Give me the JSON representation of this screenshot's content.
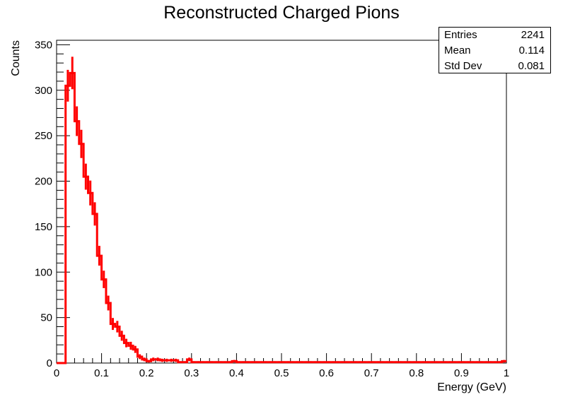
{
  "chart_data": {
    "type": "histogram",
    "title": "Reconstructed Charged Pions",
    "xlabel": "Energy (GeV)",
    "ylabel": "Counts",
    "xlim": [
      0,
      1
    ],
    "ylim": [
      0,
      355
    ],
    "x_ticks": [
      "0",
      "0.1",
      "0.2",
      "0.3",
      "0.4",
      "0.5",
      "0.6",
      "0.7",
      "0.8",
      "0.9",
      "1"
    ],
    "y_ticks": [
      "0",
      "50",
      "100",
      "150",
      "200",
      "250",
      "300",
      "350"
    ],
    "bin_width": 0.01,
    "series": [
      {
        "color": "#ff0000",
        "bin_start": 0.0,
        "counts": [
          0,
          0,
          305,
          319,
          266,
          241,
          205,
          187,
          164,
          118,
          92,
          66,
          43,
          40,
          30,
          22,
          19,
          15,
          7,
          4,
          2,
          4,
          4,
          3,
          3,
          3,
          3,
          1,
          1,
          4,
          1,
          1,
          1,
          1,
          1,
          1,
          1,
          1,
          1,
          2,
          1,
          1,
          1,
          1,
          1,
          1,
          1,
          1,
          1,
          1,
          1,
          1,
          1,
          1,
          1,
          1,
          1,
          1,
          1,
          1,
          1,
          1,
          1,
          1,
          1,
          1,
          1,
          1,
          1,
          1,
          1,
          1,
          1,
          1,
          1,
          1,
          1,
          1,
          1,
          1,
          1,
          1,
          1,
          1,
          1,
          1,
          1,
          1,
          1,
          1,
          1,
          1,
          1,
          1,
          1,
          1,
          1,
          1,
          1,
          2
        ]
      }
    ],
    "stats": [
      {
        "label": "Entries",
        "value": "2241"
      },
      {
        "label": "Mean",
        "value": "0.114"
      },
      {
        "label": "Std Dev",
        "value": "0.081"
      }
    ]
  }
}
